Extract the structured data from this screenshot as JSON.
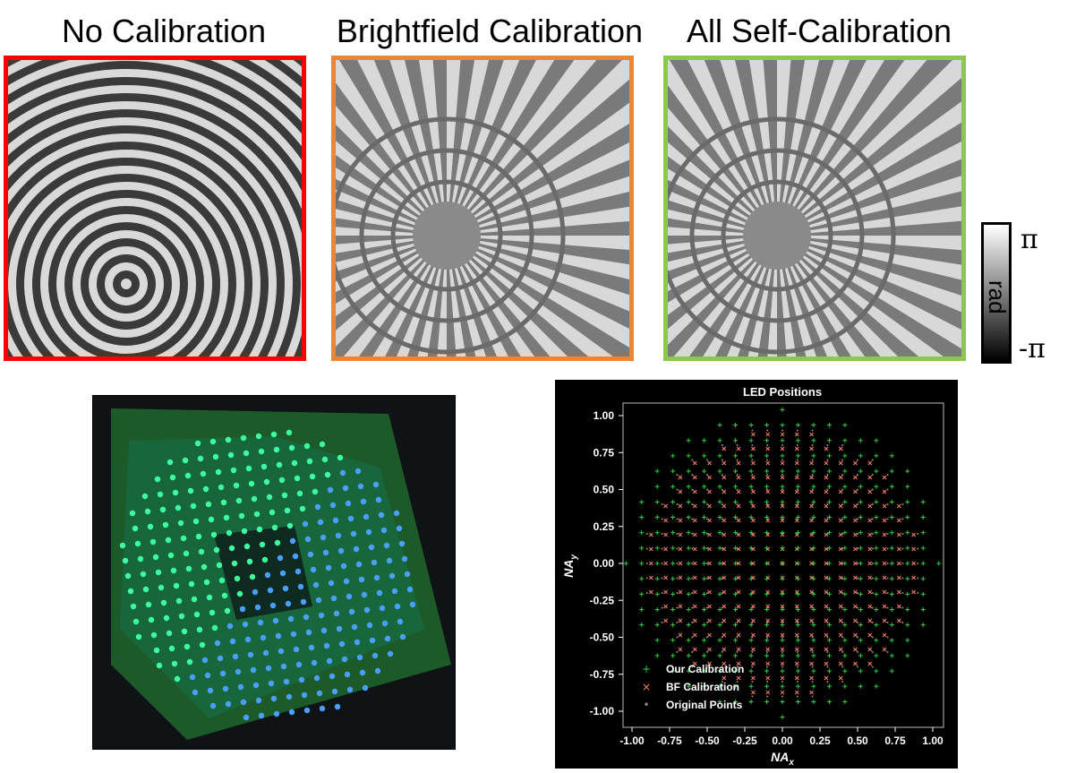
{
  "panels": [
    {
      "title": "No Calibration",
      "border_color": "#ff0000"
    },
    {
      "title": "Brightfield Calibration",
      "border_color": "#ee8533"
    },
    {
      "title": "All Self-Calibration",
      "border_color": "#8cc850"
    }
  ],
  "colorbar": {
    "top_label": "π",
    "mid_label": "rad",
    "bottom_label": "-π"
  },
  "photo": {
    "description_icon": "led-array-photo"
  },
  "chart_data": {
    "type": "scatter",
    "title": "LED Positions",
    "xlabel": "NA",
    "xlabel_sub": "x",
    "ylabel": "NA",
    "ylabel_sub": "y",
    "xlim": [
      -1.05,
      1.05
    ],
    "ylim": [
      -1.05,
      1.05
    ],
    "xticks": [
      "-1.00",
      "-0.75",
      "-0.50",
      "-0.25",
      "0.00",
      "0.25",
      "0.50",
      "0.75",
      "1.00"
    ],
    "yticks": [
      "1.00",
      "0.75",
      "0.50",
      "0.25",
      "0.00",
      "-0.25",
      "-0.50",
      "-0.75",
      "-1.00"
    ],
    "background": "#000000",
    "grid": false,
    "legend_position": "bottom-left",
    "series": [
      {
        "name": "Our Calibration",
        "marker": "+",
        "color": "#2ecc40",
        "grid_spacing": 0.1,
        "max_radius": 1.0
      },
      {
        "name": "BF Calibration",
        "marker": "x",
        "color": "#ff7f66",
        "grid_spacing": 0.1,
        "max_radius": 0.93
      },
      {
        "name": "Original Points",
        "marker": ".",
        "color": "#8a8a8a",
        "grid_spacing": 0.1,
        "max_radius": 0.93
      }
    ]
  }
}
